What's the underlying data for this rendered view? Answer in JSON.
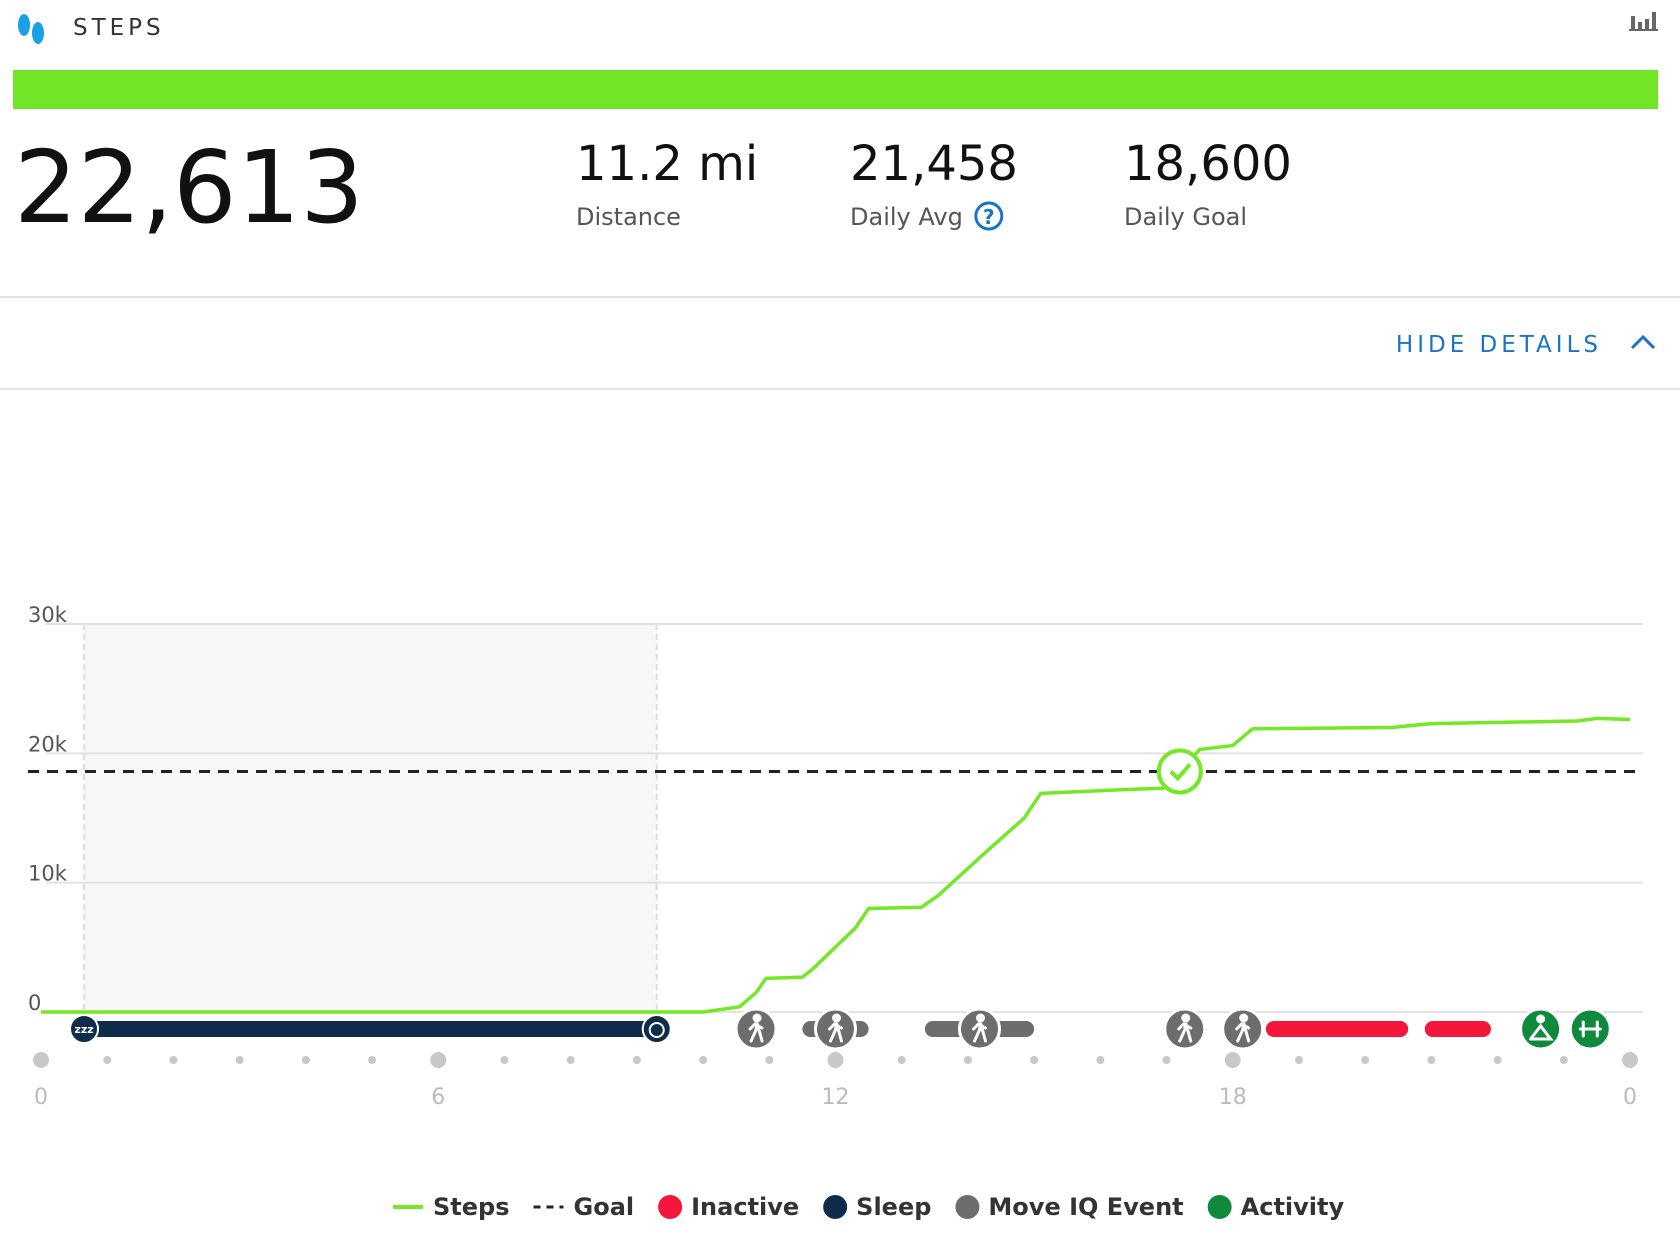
{
  "header": {
    "title": "STEPS",
    "toggle": "HIDE DETAILS"
  },
  "summary": {
    "total": "22,613",
    "stats": [
      {
        "value": "11.2 mi",
        "label": "Distance"
      },
      {
        "value": "21,458",
        "label": "Daily Avg"
      },
      {
        "value": "18,600",
        "label": "Daily Goal"
      }
    ]
  },
  "chart_data": {
    "type": "line",
    "x": [
      0,
      10.0,
      10.55,
      10.8,
      10.95,
      11.5,
      11.65,
      12.3,
      12.5,
      13.3,
      13.55,
      14.3,
      14.85,
      15.1,
      16.4,
      16.95,
      17.2,
      17.5,
      18.0,
      18.3,
      20.4,
      21.0,
      23.2,
      23.5,
      24
    ],
    "series": [
      {
        "name": "Steps",
        "color": "#74e826",
        "values": [
          0,
          0,
          400,
          1500,
          2600,
          2700,
          3300,
          6500,
          8000,
          8100,
          9000,
          12500,
          15000,
          16900,
          17200,
          17300,
          18600,
          20300,
          20600,
          21900,
          22000,
          22300,
          22500,
          22700,
          22613
        ]
      }
    ],
    "goal": {
      "name": "Goal",
      "value": 18600,
      "color": "#222222"
    },
    "events": [
      {
        "name": "Inactive",
        "color": "#f5163c",
        "ranges": [
          [
            18.5,
            20.65
          ],
          [
            20.9,
            21.9
          ]
        ]
      },
      {
        "name": "Sleep",
        "color": "#0f2d4a",
        "ranges": [
          [
            0.65,
            9.3
          ]
        ]
      },
      {
        "name": "Move IQ Event",
        "color": "#6d6d6d",
        "ranges": [
          [
            10.8,
            10.8
          ],
          [
            11.5,
            12.5
          ],
          [
            13.35,
            15.0
          ],
          [
            16.95,
            17.6
          ],
          [
            18.15,
            18.15
          ]
        ]
      },
      {
        "name": "Activity",
        "color": "#0f8a3c",
        "ranges": [
          [
            22.65,
            22.65
          ],
          [
            23.4,
            23.4
          ]
        ]
      }
    ],
    "xlim": [
      0,
      24
    ],
    "xticks": [
      0,
      6,
      12,
      18,
      {
        "value": 24,
        "label": "0"
      }
    ],
    "ylim": [
      0,
      30000
    ],
    "yticks": [
      0,
      {
        "value": 10000,
        "label": "10k"
      },
      {
        "value": 20000,
        "label": "20k"
      },
      {
        "value": 30000,
        "label": "30k"
      }
    ],
    "grid": true
  }
}
